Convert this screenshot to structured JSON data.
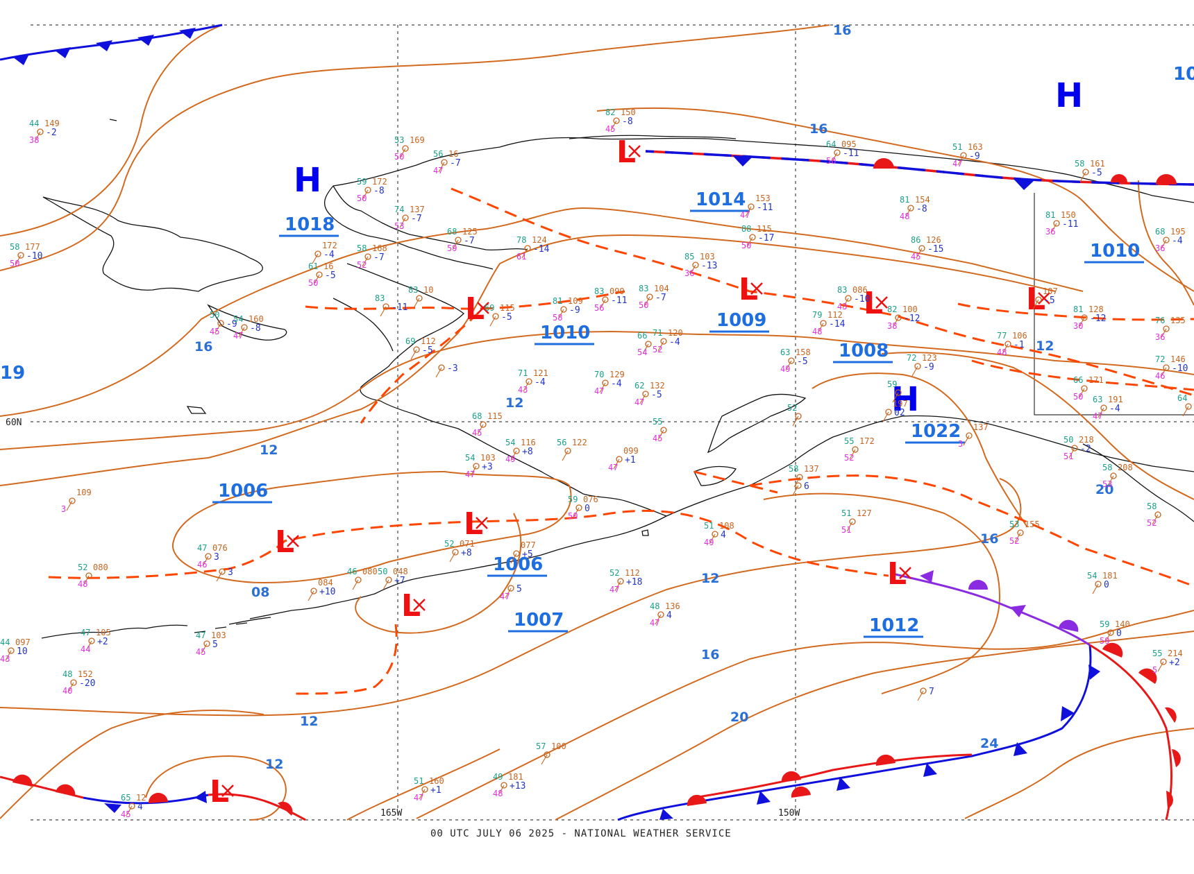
{
  "footer_text": "00 UTC JULY 06 2025 - NATIONAL WEATHER SERVICE",
  "grid_labels": {
    "lat_60": "60N",
    "lon_165": "165W",
    "lon_150": "150W"
  },
  "colors": {
    "isobar": "#d2691e",
    "trough": "#ff4500",
    "cold_front": "#1010dd",
    "warm_front": "#e81818",
    "high": "#0000ee",
    "low": "#ee1111",
    "pressure_label": "#1e6ee0"
  },
  "isobar_labels": [
    "16",
    "16",
    "16",
    "12",
    "12",
    "12",
    "08",
    "12",
    "12",
    "16",
    "20",
    "12",
    "20",
    "16",
    "24",
    "19",
    "10",
    "12"
  ],
  "pressure_centers": [
    "1018",
    "1014",
    "1009",
    "1010",
    "1010",
    "1008",
    "1022",
    "1006",
    "1006",
    "1007",
    "1012"
  ],
  "highs": [
    "H",
    "H",
    "H"
  ],
  "lows": [
    "L",
    "L",
    "L",
    "L",
    "L",
    "L",
    "L",
    "L",
    "L",
    "L"
  ],
  "stations": [
    {
      "t": "44",
      "p": "149",
      "d": "38",
      "c": "-2"
    },
    {
      "t": "58",
      "p": "177",
      "d": "50",
      "c": "-10"
    },
    {
      "t": "53",
      "p": "169",
      "d": "50",
      "c": ""
    },
    {
      "t": "59",
      "p": "172",
      "d": "50",
      "c": "-8"
    },
    {
      "t": "56",
      "p": "16",
      "d": "47",
      "c": "-7"
    },
    {
      "t": "74",
      "p": "137",
      "d": "53",
      "c": "-7"
    },
    {
      "t": "68",
      "p": "125",
      "d": "59",
      "c": "-7"
    },
    {
      "t": "78",
      "p": "124",
      "d": "61",
      "c": "-14"
    },
    {
      "t": "",
      "p": "172",
      "d": "",
      "c": "-4"
    },
    {
      "t": "58",
      "p": "168",
      "d": "52",
      "c": "-7"
    },
    {
      "t": "61",
      "p": "16",
      "d": "50",
      "c": "-5"
    },
    {
      "t": "50",
      "p": "",
      "d": "45",
      "c": "-9"
    },
    {
      "t": "54",
      "p": "160",
      "d": "47",
      "c": "-8"
    },
    {
      "t": "83",
      "p": "10",
      "d": "",
      "c": ""
    },
    {
      "t": "83",
      "p": "",
      "d": "",
      "c": "-11"
    },
    {
      "t": "81",
      "p": "109",
      "d": "58",
      "c": "-9"
    },
    {
      "t": "83",
      "p": "099",
      "d": "56",
      "c": "-11"
    },
    {
      "t": "83",
      "p": "104",
      "d": "50",
      "c": "-7"
    },
    {
      "t": "69",
      "p": "115",
      "d": "",
      "c": "-5"
    },
    {
      "t": "69",
      "p": "112",
      "d": "",
      "c": "-5"
    },
    {
      "t": "",
      "p": "",
      "d": "",
      "c": "-3"
    },
    {
      "t": "66",
      "p": "",
      "d": "54",
      "c": ""
    },
    {
      "t": "71",
      "p": "120",
      "d": "52",
      "c": "-4"
    },
    {
      "t": "71",
      "p": "121",
      "d": "43",
      "c": "-4"
    },
    {
      "t": "70",
      "p": "129",
      "d": "47",
      "c": "-4"
    },
    {
      "t": "62",
      "p": "132",
      "d": "47",
      "c": "-5"
    },
    {
      "t": "68",
      "p": "115",
      "d": "45",
      "c": ""
    },
    {
      "t": "85",
      "p": "103",
      "d": "36",
      "c": "-13"
    },
    {
      "t": "82",
      "p": "150",
      "d": "45",
      "c": "-8"
    },
    {
      "t": "",
      "p": "153",
      "d": "47",
      "c": "-11"
    },
    {
      "t": "88",
      "p": "115",
      "d": "50",
      "c": "-17"
    },
    {
      "t": "64",
      "p": "095",
      "d": "50",
      "c": "-11"
    },
    {
      "t": "51",
      "p": "163",
      "d": "47",
      "c": "-9"
    },
    {
      "t": "81",
      "p": "154",
      "d": "48",
      "c": "-8"
    },
    {
      "t": "86",
      "p": "126",
      "d": "45",
      "c": "-15"
    },
    {
      "t": "58",
      "p": "161",
      "d": "",
      "c": "-5"
    },
    {
      "t": "81",
      "p": "150",
      "d": "36",
      "c": "-11"
    },
    {
      "t": "68",
      "p": "195",
      "d": "36",
      "c": "-4"
    },
    {
      "t": "79",
      "p": "112",
      "d": "48",
      "c": "-14"
    },
    {
      "t": "83",
      "p": "086",
      "d": "43",
      "c": "-10"
    },
    {
      "t": "82",
      "p": "100",
      "d": "38",
      "c": "-12"
    },
    {
      "t": "",
      "p": "107",
      "d": "",
      "c": "-5"
    },
    {
      "t": "81",
      "p": "128",
      "d": "30",
      "c": "-12"
    },
    {
      "t": "76",
      "p": "135",
      "d": "36",
      "c": ""
    },
    {
      "t": "77",
      "p": "106",
      "d": "48",
      "c": "-1"
    },
    {
      "t": "63",
      "p": "158",
      "d": "49",
      "c": "-5"
    },
    {
      "t": "72",
      "p": "123",
      "d": "",
      "c": "-9"
    },
    {
      "t": "72",
      "p": "146",
      "d": "46",
      "c": "-10"
    },
    {
      "t": "66",
      "p": "171",
      "d": "50",
      "c": ""
    },
    {
      "t": "63",
      "p": "191",
      "d": "47",
      "c": "-4"
    },
    {
      "t": "64",
      "p": "",
      "d": "",
      "c": ""
    },
    {
      "t": "59",
      "p": "",
      "d": "",
      "c": ""
    },
    {
      "t": "",
      "p": "197",
      "d": "",
      "c": "02"
    },
    {
      "t": "",
      "p": "137",
      "d": "3",
      "c": ""
    },
    {
      "t": "50",
      "p": "218",
      "d": "51",
      "c": "-2"
    },
    {
      "t": "58",
      "p": "208",
      "d": "53",
      "c": ""
    },
    {
      "t": "58",
      "p": "",
      "d": "52",
      "c": ""
    },
    {
      "t": "55",
      "p": "",
      "d": "45",
      "c": ""
    },
    {
      "t": "54",
      "p": "116",
      "d": "49",
      "c": "+8"
    },
    {
      "t": "54",
      "p": "103",
      "d": "47",
      "c": "+3"
    },
    {
      "t": "56",
      "p": "122",
      "d": "",
      "c": ""
    },
    {
      "t": "",
      "p": "099",
      "d": "47",
      "c": "+1"
    },
    {
      "t": "55",
      "p": "172",
      "d": "52",
      "c": ""
    },
    {
      "t": "52",
      "p": "",
      "d": "",
      "c": ""
    },
    {
      "t": "58",
      "p": "137",
      "d": "",
      "c": ""
    },
    {
      "t": "51",
      "p": "127",
      "d": "51",
      "c": ""
    },
    {
      "t": "53",
      "p": "155",
      "d": "52",
      "c": ""
    },
    {
      "t": "",
      "p": "109",
      "d": "3",
      "c": ""
    },
    {
      "t": "52",
      "p": "080",
      "d": "48",
      "c": ""
    },
    {
      "t": "47",
      "p": "076",
      "d": "46",
      "c": "3"
    },
    {
      "t": "",
      "p": "",
      "d": "",
      "c": "3"
    },
    {
      "t": "59",
      "p": "076",
      "d": "50",
      "c": "0"
    },
    {
      "t": "52",
      "p": "071",
      "d": "",
      "c": "+8"
    },
    {
      "t": "",
      "p": "077",
      "d": "",
      "c": "+5"
    },
    {
      "t": "",
      "p": "084",
      "d": "",
      "c": "+10"
    },
    {
      "t": "46",
      "p": "080",
      "d": "",
      "c": ""
    },
    {
      "t": "50",
      "p": "048",
      "d": "",
      "c": "+7"
    },
    {
      "t": "",
      "p": "",
      "d": "47",
      "c": "5"
    },
    {
      "t": "51",
      "p": "108",
      "d": "49",
      "c": "4"
    },
    {
      "t": "52",
      "p": "112",
      "d": "47",
      "c": "+18"
    },
    {
      "t": "48",
      "p": "136",
      "d": "47",
      "c": "4"
    },
    {
      "t": "54",
      "p": "181",
      "d": "",
      "c": "0"
    },
    {
      "t": "59",
      "p": "140",
      "d": "59",
      "c": "0"
    },
    {
      "t": "55",
      "p": "214",
      "d": "5",
      "c": "+2"
    },
    {
      "t": "44",
      "p": "097",
      "d": "43",
      "c": "10"
    },
    {
      "t": "47",
      "p": "105",
      "d": "44",
      "c": "+2"
    },
    {
      "t": "47",
      "p": "103",
      "d": "45",
      "c": "5"
    },
    {
      "t": "48",
      "p": "152",
      "d": "40",
      "c": "-20"
    },
    {
      "t": "",
      "p": "",
      "d": "",
      "c": "7"
    },
    {
      "t": "57",
      "p": "100",
      "d": "",
      "c": ""
    },
    {
      "t": "51",
      "p": "160",
      "d": "47",
      "c": "+1"
    },
    {
      "t": "49",
      "p": "181",
      "d": "48",
      "c": "+13"
    },
    {
      "t": "65",
      "p": "12",
      "d": "45",
      "c": "4"
    },
    {
      "t": "",
      "p": "",
      "d": "",
      "c": "6"
    }
  ]
}
